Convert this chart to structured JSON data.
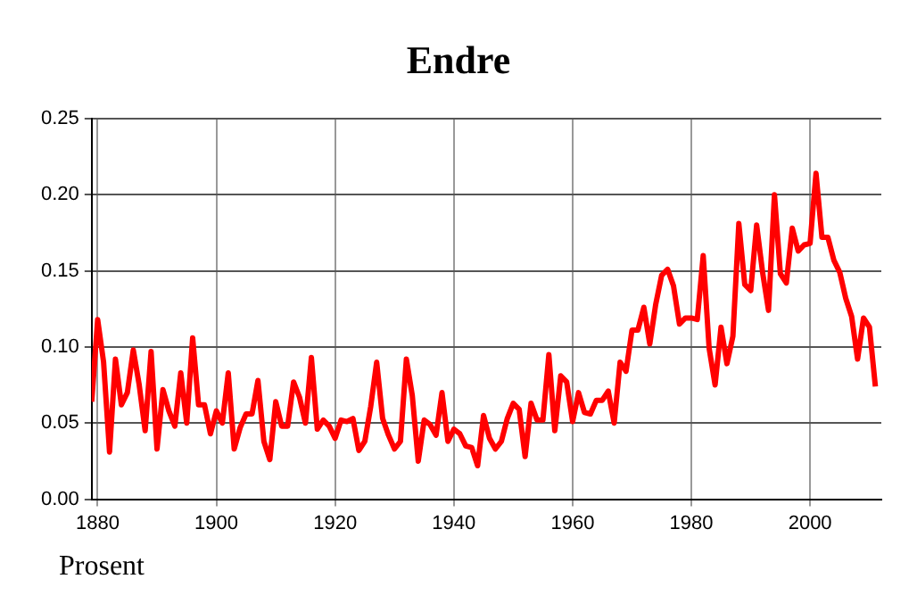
{
  "chart_data": {
    "type": "line",
    "title": "Endre",
    "ylabel": "Prosent",
    "x": [
      1879,
      1880,
      1881,
      1882,
      1883,
      1884,
      1885,
      1886,
      1887,
      1888,
      1889,
      1890,
      1891,
      1892,
      1893,
      1894,
      1895,
      1896,
      1897,
      1898,
      1899,
      1900,
      1901,
      1902,
      1903,
      1904,
      1905,
      1906,
      1907,
      1908,
      1909,
      1910,
      1911,
      1912,
      1913,
      1914,
      1915,
      1916,
      1917,
      1918,
      1919,
      1920,
      1921,
      1922,
      1923,
      1924,
      1925,
      1926,
      1927,
      1928,
      1929,
      1930,
      1931,
      1932,
      1933,
      1934,
      1935,
      1936,
      1937,
      1938,
      1939,
      1940,
      1941,
      1942,
      1943,
      1944,
      1945,
      1946,
      1947,
      1948,
      1949,
      1950,
      1951,
      1952,
      1953,
      1954,
      1955,
      1956,
      1957,
      1958,
      1959,
      1960,
      1961,
      1962,
      1963,
      1964,
      1965,
      1966,
      1967,
      1968,
      1969,
      1970,
      1971,
      1972,
      1973,
      1974,
      1975,
      1976,
      1977,
      1978,
      1979,
      1980,
      1981,
      1982,
      1983,
      1984,
      1985,
      1986,
      1987,
      1988,
      1989,
      1990,
      1991,
      1992,
      1993,
      1994,
      1995,
      1996,
      1997,
      1998,
      1999,
      2000,
      2001,
      2002,
      2003,
      2004,
      2005,
      2006,
      2007,
      2008,
      2009,
      2010,
      2011
    ],
    "series": [
      {
        "color": "#ff0000",
        "values": [
          0.064,
          0.118,
          0.09,
          0.031,
          0.092,
          0.062,
          0.07,
          0.098,
          0.075,
          0.045,
          0.097,
          0.033,
          0.072,
          0.058,
          0.048,
          0.083,
          0.05,
          0.106,
          0.062,
          0.062,
          0.043,
          0.058,
          0.05,
          0.083,
          0.033,
          0.047,
          0.056,
          0.056,
          0.078,
          0.038,
          0.026,
          0.064,
          0.048,
          0.048,
          0.077,
          0.067,
          0.05,
          0.093,
          0.046,
          0.052,
          0.048,
          0.04,
          0.052,
          0.051,
          0.053,
          0.032,
          0.038,
          0.061,
          0.09,
          0.053,
          0.042,
          0.033,
          0.038,
          0.092,
          0.068,
          0.025,
          0.052,
          0.049,
          0.042,
          0.07,
          0.038,
          0.046,
          0.043,
          0.035,
          0.034,
          0.022,
          0.055,
          0.04,
          0.033,
          0.038,
          0.053,
          0.063,
          0.059,
          0.028,
          0.063,
          0.052,
          0.052,
          0.095,
          0.045,
          0.081,
          0.077,
          0.051,
          0.07,
          0.057,
          0.056,
          0.065,
          0.065,
          0.071,
          0.05,
          0.09,
          0.084,
          0.111,
          0.111,
          0.126,
          0.102,
          0.128,
          0.147,
          0.151,
          0.14,
          0.115,
          0.119,
          0.119,
          0.118,
          0.16,
          0.099,
          0.075,
          0.113,
          0.089,
          0.107,
          0.181,
          0.141,
          0.137,
          0.18,
          0.149,
          0.124,
          0.2,
          0.148,
          0.142,
          0.178,
          0.163,
          0.167,
          0.168,
          0.214,
          0.172,
          0.172,
          0.157,
          0.149,
          0.132,
          0.12,
          0.092,
          0.119,
          0.113,
          0.074
        ]
      }
    ],
    "xlim": [
      1879,
      2012
    ],
    "xticks": [
      1880,
      1900,
      1920,
      1940,
      1960,
      1980,
      2000
    ],
    "ylim": [
      0,
      0.25
    ],
    "yticks": [
      {
        "value": 0,
        "label": "0.00"
      },
      {
        "value": 0.05,
        "label": "0.05"
      },
      {
        "value": 0.1,
        "label": "0.10"
      },
      {
        "value": 0.15,
        "label": "0.15"
      },
      {
        "value": 0.2,
        "label": "0.20"
      },
      {
        "value": 0.25,
        "label": "0.25"
      }
    ],
    "grid": true,
    "legend": false,
    "marker": "none",
    "line_style": "solid"
  }
}
